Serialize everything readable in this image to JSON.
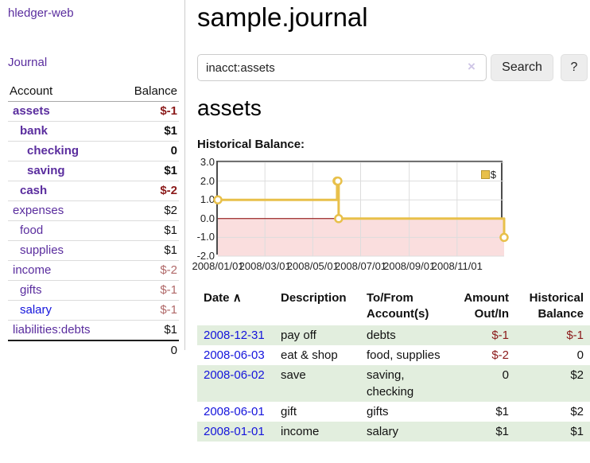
{
  "app": {
    "title": "hledger-web",
    "nav_journal": "Journal"
  },
  "colors": {
    "link_purple": "#5a2d9e",
    "link_blue": "#1414dc",
    "negative_strong": "#8b1a1a",
    "negative_soft": "#b06868",
    "row_stripe_green": "#e2eede",
    "button_gray": "#ededed"
  },
  "sidebar": {
    "columns": [
      "Account",
      "Balance"
    ],
    "accounts": [
      {
        "name": "assets",
        "level": 0,
        "bold": true,
        "balance": "$-1"
      },
      {
        "name": "bank",
        "level": 1,
        "bold": true,
        "balance": "$1"
      },
      {
        "name": "checking",
        "level": 2,
        "bold": true,
        "balance": "0"
      },
      {
        "name": "saving",
        "level": 2,
        "bold": true,
        "balance": "$1"
      },
      {
        "name": "cash",
        "level": 1,
        "bold": true,
        "balance": "$-2"
      },
      {
        "name": "expenses",
        "level": 0,
        "bold": false,
        "balance": "$2"
      },
      {
        "name": "food",
        "level": 1,
        "bold": false,
        "balance": "$1"
      },
      {
        "name": "supplies",
        "level": 1,
        "bold": false,
        "balance": "$1"
      },
      {
        "name": "income",
        "level": 0,
        "bold": false,
        "balance": "$-2"
      },
      {
        "name": "gifts",
        "level": 1,
        "bold": false,
        "balance": "$-1"
      },
      {
        "name": "salary",
        "level": 1,
        "bold": false,
        "balance": "$-1",
        "link_color": "blue"
      },
      {
        "name": "liabilities:debts",
        "level": 0,
        "bold": false,
        "balance": "$1"
      }
    ],
    "total": "0"
  },
  "header": {
    "title": "sample.journal"
  },
  "search": {
    "value": "inacct:assets",
    "clear_icon": "×",
    "button_label": "Search",
    "help_label": "?"
  },
  "account_page": {
    "heading": "assets",
    "chart_label": "Historical Balance:"
  },
  "chart_data": {
    "type": "line",
    "step": "after",
    "title": "Historical Balance:",
    "series": [
      {
        "name": "$",
        "points": [
          {
            "date": "2008-01-01",
            "day": 0,
            "value": 1
          },
          {
            "date": "2008-06-01",
            "day": 152,
            "value": 2
          },
          {
            "date": "2008-06-02",
            "day": 153,
            "value": 2
          },
          {
            "date": "2008-06-03",
            "day": 154,
            "value": 0
          },
          {
            "date": "2008-12-31",
            "day": 365,
            "value": -1
          }
        ]
      }
    ],
    "ylim": [
      -2,
      3
    ],
    "yticks": [
      {
        "label": "3.0",
        "value": 3
      },
      {
        "label": "2.0",
        "value": 2
      },
      {
        "label": "1.0",
        "value": 1
      },
      {
        "label": "0.0",
        "value": 0
      },
      {
        "label": "-1.0",
        "value": -1
      },
      {
        "label": "-2.0",
        "value": -2
      }
    ],
    "xticks": [
      {
        "label": "2008/01/01",
        "day": 0
      },
      {
        "label": "2008/03/01",
        "day": 60
      },
      {
        "label": "2008/05/01",
        "day": 121
      },
      {
        "label": "2008/07/01",
        "day": 182
      },
      {
        "label": "2008/09/01",
        "day": 244
      },
      {
        "label": "2008/11/01",
        "day": 305
      }
    ],
    "x_range_days": [
      0,
      365
    ],
    "grid": true,
    "legend": {
      "label": "$",
      "position": "top-right"
    },
    "colors": {
      "line": "#e8c04a",
      "marker_fill": "#ffffff",
      "negative_fill": "#fadede",
      "zero_line": "#8b0000",
      "gridline": "#dddddd",
      "border": "#4d4d4d"
    }
  },
  "register": {
    "sort_indicator": "∧",
    "columns": [
      "Date",
      "Description",
      "To/From Account(s)",
      "Amount Out/In",
      "Historical Balance"
    ],
    "rows": [
      {
        "date": "2008-12-31",
        "description": "pay off",
        "accounts": "debts",
        "amount": "$-1",
        "balance": "$-1"
      },
      {
        "date": "2008-06-03",
        "description": "eat & shop",
        "accounts": "food, supplies",
        "amount": "$-2",
        "balance": "0"
      },
      {
        "date": "2008-06-02",
        "description": "save",
        "accounts": "saving, checking",
        "amount": "0",
        "balance": "$2"
      },
      {
        "date": "2008-06-01",
        "description": "gift",
        "accounts": "gifts",
        "amount": "$1",
        "balance": "$2"
      },
      {
        "date": "2008-01-01",
        "description": "income",
        "accounts": "salary",
        "amount": "$1",
        "balance": "$1"
      }
    ]
  }
}
